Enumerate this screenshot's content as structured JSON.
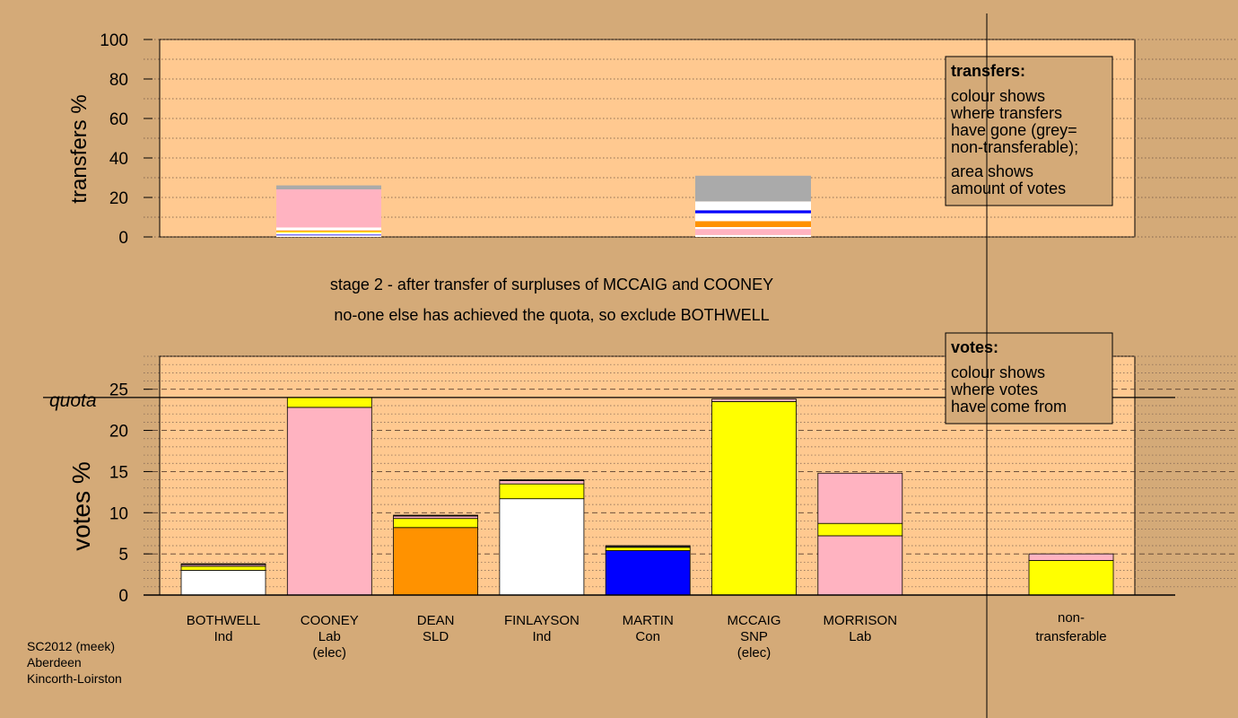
{
  "colors": {
    "background": "#d4aa78",
    "plot": "#ffc990",
    "ind_bothwell": "#ffffff",
    "ind_finlayson": "#ffffff",
    "lab": "#ffb3c1",
    "sld": "#ff9200",
    "con": "#0000ff",
    "snp": "#ffff00",
    "grey": "#aaaaaa",
    "dark": "#303030"
  },
  "stage_text": {
    "line1": "stage 2 - after transfer of surpluses of MCCAIG and COONEY",
    "line2": "no-one else has achieved the quota, so exclude BOTHWELL"
  },
  "footer": {
    "line1": "SC2012 (meek)",
    "line2": "Aberdeen",
    "line3": "Kincorth-Loirston"
  },
  "transfers_legend": {
    "title": "transfers:",
    "lines": [
      "colour shows",
      "where transfers",
      "have gone (grey=",
      "non-transferable);"
    ],
    "lines2": [
      "area shows",
      "amount of votes"
    ]
  },
  "votes_legend": {
    "title": "votes:",
    "lines": [
      "colour shows",
      "where votes",
      "have come from"
    ]
  },
  "chart_data": [
    {
      "type": "bar",
      "id": "transfers",
      "ylabel": "transfers %",
      "ylim": [
        0,
        100
      ],
      "yticks": [
        0,
        20,
        40,
        60,
        80,
        100
      ],
      "bars": [
        {
          "label": "COONEY",
          "segments": [
            {
              "value": 0.8,
              "color": "white"
            },
            {
              "value": 0.4,
              "color": "con"
            },
            {
              "value": 1.0,
              "color": "ind_finlayson"
            },
            {
              "value": 0.5,
              "color": "snp"
            },
            {
              "value": 0.6,
              "color": "sld"
            },
            {
              "value": 1.5,
              "color": "ind_bothwell"
            },
            {
              "value": 19.3,
              "color": "lab"
            },
            {
              "value": 2.0,
              "color": "grey"
            }
          ]
        },
        {
          "label": "MCCAIG",
          "segments": [
            {
              "value": 1.0,
              "color": "white"
            },
            {
              "value": 3.0,
              "color": "lab"
            },
            {
              "value": 1.0,
              "color": "ind_finlayson"
            },
            {
              "value": 3.0,
              "color": "sld"
            },
            {
              "value": 4.0,
              "color": "ind_bothwell"
            },
            {
              "value": 1.5,
              "color": "con"
            },
            {
              "value": 4.5,
              "color": "ind_finlayson"
            },
            {
              "value": 13.0,
              "color": "grey"
            }
          ]
        }
      ]
    },
    {
      "type": "bar",
      "id": "votes",
      "ylabel": "votes %",
      "ylim": [
        0,
        29
      ],
      "yticks": [
        0,
        5,
        10,
        15,
        20,
        25
      ],
      "quota": 24.0,
      "quota_label": "quota",
      "candidates": [
        {
          "name": "BOTHWELL",
          "party": "Ind",
          "status": "",
          "segments": [
            {
              "value": 3.0,
              "color": "ind_bothwell"
            },
            {
              "value": 0.5,
              "color": "snp"
            },
            {
              "value": 0.2,
              "color": "lab"
            },
            {
              "value": 0.1,
              "color": "dark"
            }
          ]
        },
        {
          "name": "COONEY",
          "party": "Lab",
          "status": "(elec)",
          "segments": [
            {
              "value": 22.8,
              "color": "lab"
            },
            {
              "value": 1.2,
              "color": "snp"
            }
          ]
        },
        {
          "name": "DEAN",
          "party": "SLD",
          "status": "",
          "segments": [
            {
              "value": 8.2,
              "color": "sld"
            },
            {
              "value": 1.1,
              "color": "snp"
            },
            {
              "value": 0.3,
              "color": "lab"
            },
            {
              "value": 0.1,
              "color": "dark"
            }
          ]
        },
        {
          "name": "FINLAYSON",
          "party": "Ind",
          "status": "",
          "segments": [
            {
              "value": 11.7,
              "color": "ind_finlayson"
            },
            {
              "value": 1.8,
              "color": "snp"
            },
            {
              "value": 0.4,
              "color": "lab"
            },
            {
              "value": 0.1,
              "color": "dark"
            }
          ]
        },
        {
          "name": "MARTIN",
          "party": "Con",
          "status": "",
          "segments": [
            {
              "value": 5.4,
              "color": "con"
            },
            {
              "value": 0.4,
              "color": "snp"
            },
            {
              "value": 0.2,
              "color": "dark"
            }
          ]
        },
        {
          "name": "MCCAIG",
          "party": "SNP",
          "status": "(elec)",
          "segments": [
            {
              "value": 23.5,
              "color": "snp"
            },
            {
              "value": 0.3,
              "color": "lab"
            }
          ]
        },
        {
          "name": "MORRISON",
          "party": "Lab",
          "status": "",
          "segments": [
            {
              "value": 7.2,
              "color": "lab"
            },
            {
              "value": 1.5,
              "color": "snp"
            },
            {
              "value": 6.1,
              "color": "lab"
            }
          ]
        }
      ],
      "nontransferable": {
        "label1": "non-",
        "label2": "transferable",
        "segments": [
          {
            "value": 4.2,
            "color": "snp"
          },
          {
            "value": 0.8,
            "color": "lab"
          }
        ]
      }
    }
  ]
}
